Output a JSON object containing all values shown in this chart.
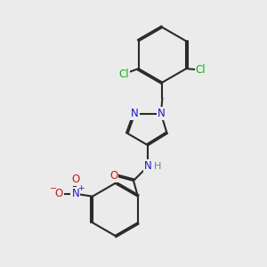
{
  "background_color": "#ebebeb",
  "bond_color": "#2a2a2a",
  "bond_width": 1.5,
  "dbo": 0.055,
  "figsize": [
    3.0,
    3.0
  ],
  "dpi": 100,
  "fs": 8.5,
  "colors": {
    "C": "#2a2a2a",
    "N": "#1a1acc",
    "O": "#cc1a1a",
    "Cl": "#00bb00",
    "NH_N": "#1a1acc",
    "NH_H": "#5a8a8a"
  }
}
